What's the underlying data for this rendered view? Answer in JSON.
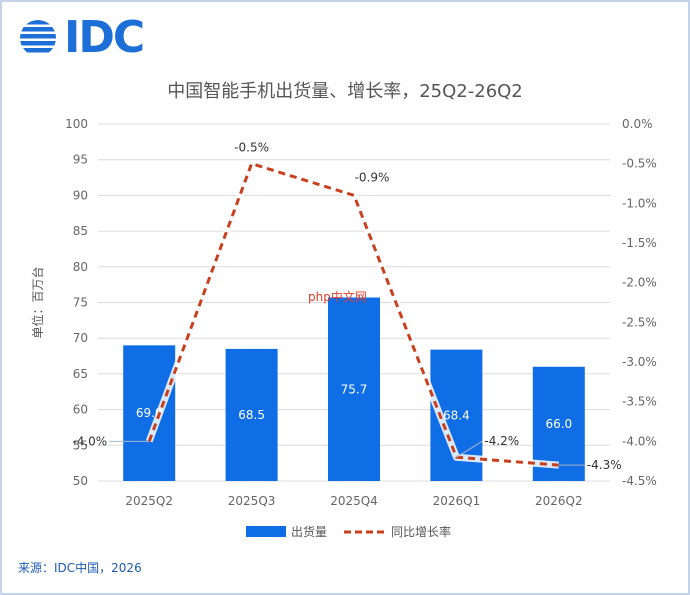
{
  "brand": {
    "logo_text": "IDC",
    "accent": "#1d6fd8"
  },
  "chart_data": {
    "type": "bar",
    "title": "中国智能手机出货量、增长率，25Q2-26Q2",
    "categories": [
      "2025Q2",
      "2025Q3",
      "2025Q4",
      "2026Q1",
      "2026Q2"
    ],
    "ylabel": "单位：百万台",
    "ylim": [
      50,
      100
    ],
    "yticks": [
      50,
      55,
      60,
      65,
      70,
      75,
      80,
      85,
      90,
      95,
      100
    ],
    "y2lim": [
      -4.5,
      0.0
    ],
    "y2ticks": [
      "0.0%",
      "-0.5%",
      "-1.0%",
      "-1.5%",
      "-2.0%",
      "-2.5%",
      "-3.0%",
      "-3.5%",
      "-4.0%",
      "-4.5%"
    ],
    "y2values": [
      0.0,
      -0.5,
      -1.0,
      -1.5,
      -2.0,
      -2.5,
      -3.0,
      -3.5,
      -4.0,
      -4.5
    ],
    "series": [
      {
        "name": "出货量",
        "type": "bar",
        "axis": "left",
        "color": "#0f6ee6",
        "values": [
          69.0,
          68.5,
          75.7,
          68.4,
          66.0
        ],
        "labels": [
          "69.0",
          "68.5",
          "75.7",
          "68.4",
          "66.0"
        ]
      },
      {
        "name": "同比增长率",
        "type": "line",
        "axis": "right",
        "color": "#c9401f",
        "dashed": true,
        "values": [
          -4.0,
          -0.5,
          -0.9,
          -4.2,
          -4.3
        ],
        "labels": [
          "-4.0%",
          "-0.5%",
          "-0.9%",
          "-4.2%",
          "-4.3%"
        ]
      }
    ],
    "grid": true,
    "legend": "bottom-center"
  },
  "watermark_text": "php中文网",
  "footer": {
    "source": "来源：IDC中国，2026"
  }
}
